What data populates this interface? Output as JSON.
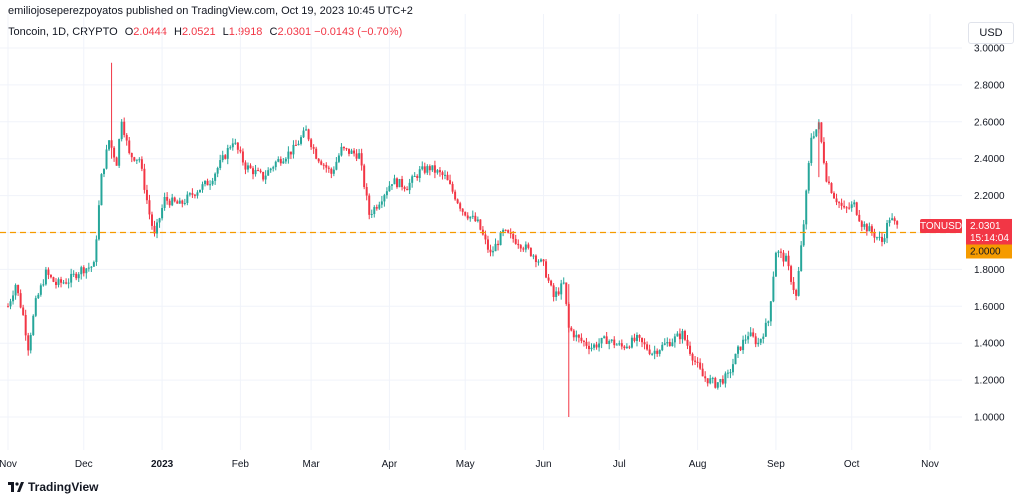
{
  "header": {
    "published_by": "emiliojoseperezpoyatos published on TradingView.com, Oct 19, 2023 10:45 UTC+2",
    "symbol": "Toncoin, 1D, CRYPTO",
    "open_label": "O",
    "open": "2.0444",
    "high_label": "H",
    "high": "2.0521",
    "low_label": "L",
    "low": "1.9918",
    "close_label": "C",
    "close": "2.0301",
    "change": "−0.0143 (−0.70%)"
  },
  "currency_button": "USD",
  "footer": {
    "brand": "TradingView"
  },
  "price_tag": {
    "symbol": "TONUSD",
    "price": "2.0301",
    "countdown": "15:14:04",
    "level": "2.0000"
  },
  "colors": {
    "up": "#26a69a",
    "down": "#f23645",
    "level_line": "#f59b00",
    "grid": "#f0f3fa"
  },
  "chart_data": {
    "type": "candlestick",
    "title": "Toncoin, 1D, CRYPTO",
    "ylim": [
      0.9,
      3.05
    ],
    "yticks": [
      "3.0000",
      "2.8000",
      "2.6000",
      "2.4000",
      "2.2000",
      "2.0000",
      "1.8000",
      "1.6000",
      "1.4000",
      "1.2000",
      "1.0000"
    ],
    "xticks": [
      {
        "label": "Nov",
        "date": "2022-11-01"
      },
      {
        "label": "Dec",
        "date": "2022-12-01"
      },
      {
        "label": "2023",
        "date": "2023-01-01",
        "bold": true
      },
      {
        "label": "Feb",
        "date": "2023-02-01"
      },
      {
        "label": "Mar",
        "date": "2023-03-01"
      },
      {
        "label": "Apr",
        "date": "2023-04-01"
      },
      {
        "label": "May",
        "date": "2023-05-01"
      },
      {
        "label": "Jun",
        "date": "2023-06-01"
      },
      {
        "label": "Jul",
        "date": "2023-07-01"
      },
      {
        "label": "Aug",
        "date": "2023-08-01"
      },
      {
        "label": "Sep",
        "date": "2023-09-01"
      },
      {
        "label": "Oct",
        "date": "2023-10-01"
      },
      {
        "label": "Nov",
        "date": "2023-11-01"
      }
    ],
    "horizontal_line": 2.0,
    "closes": [
      {
        "date": "2022-11-01",
        "close": 1.6
      },
      {
        "date": "2022-11-04",
        "close": 1.72
      },
      {
        "date": "2022-11-07",
        "close": 1.55
      },
      {
        "date": "2022-11-09",
        "close": 1.38
      },
      {
        "date": "2022-11-12",
        "close": 1.62
      },
      {
        "date": "2022-11-16",
        "close": 1.78
      },
      {
        "date": "2022-11-20",
        "close": 1.72
      },
      {
        "date": "2022-11-25",
        "close": 1.74
      },
      {
        "date": "2022-11-30",
        "close": 1.8
      },
      {
        "date": "2022-12-05",
        "close": 1.82
      },
      {
        "date": "2022-12-08",
        "close": 2.3
      },
      {
        "date": "2022-12-11",
        "close": 2.5
      },
      {
        "date": "2022-12-14",
        "close": 2.38
      },
      {
        "date": "2022-12-16",
        "close": 2.62
      },
      {
        "date": "2022-12-19",
        "close": 2.42
      },
      {
        "date": "2022-12-23",
        "close": 2.4
      },
      {
        "date": "2022-12-27",
        "close": 2.1
      },
      {
        "date": "2022-12-29",
        "close": 1.98
      },
      {
        "date": "2023-01-02",
        "close": 2.18
      },
      {
        "date": "2023-01-08",
        "close": 2.15
      },
      {
        "date": "2023-01-14",
        "close": 2.22
      },
      {
        "date": "2023-01-20",
        "close": 2.28
      },
      {
        "date": "2023-01-26",
        "close": 2.42
      },
      {
        "date": "2023-01-29",
        "close": 2.5
      },
      {
        "date": "2023-02-03",
        "close": 2.36
      },
      {
        "date": "2023-02-10",
        "close": 2.3
      },
      {
        "date": "2023-02-15",
        "close": 2.38
      },
      {
        "date": "2023-02-22",
        "close": 2.45
      },
      {
        "date": "2023-02-27",
        "close": 2.55
      },
      {
        "date": "2023-03-03",
        "close": 2.42
      },
      {
        "date": "2023-03-09",
        "close": 2.32
      },
      {
        "date": "2023-03-13",
        "close": 2.45
      },
      {
        "date": "2023-03-20",
        "close": 2.42
      },
      {
        "date": "2023-03-24",
        "close": 2.1
      },
      {
        "date": "2023-03-27",
        "close": 2.15
      },
      {
        "date": "2023-04-02",
        "close": 2.28
      },
      {
        "date": "2023-04-08",
        "close": 2.25
      },
      {
        "date": "2023-04-13",
        "close": 2.33
      },
      {
        "date": "2023-04-17",
        "close": 2.35
      },
      {
        "date": "2023-04-23",
        "close": 2.3
      },
      {
        "date": "2023-04-30",
        "close": 2.12
      },
      {
        "date": "2023-05-06",
        "close": 2.05
      },
      {
        "date": "2023-05-11",
        "close": 1.88
      },
      {
        "date": "2023-05-16",
        "close": 2.0
      },
      {
        "date": "2023-05-22",
        "close": 1.95
      },
      {
        "date": "2023-05-28",
        "close": 1.88
      },
      {
        "date": "2023-06-01",
        "close": 1.82
      },
      {
        "date": "2023-06-05",
        "close": 1.65
      },
      {
        "date": "2023-06-09",
        "close": 1.72
      },
      {
        "date": "2023-06-11",
        "close": 1.48
      },
      {
        "date": "2023-06-15",
        "close": 1.42
      },
      {
        "date": "2023-06-20",
        "close": 1.38
      },
      {
        "date": "2023-06-26",
        "close": 1.42
      },
      {
        "date": "2023-07-02",
        "close": 1.38
      },
      {
        "date": "2023-07-08",
        "close": 1.42
      },
      {
        "date": "2023-07-14",
        "close": 1.35
      },
      {
        "date": "2023-07-20",
        "close": 1.4
      },
      {
        "date": "2023-07-26",
        "close": 1.45
      },
      {
        "date": "2023-07-31",
        "close": 1.3
      },
      {
        "date": "2023-08-03",
        "close": 1.22
      },
      {
        "date": "2023-08-08",
        "close": 1.18
      },
      {
        "date": "2023-08-13",
        "close": 1.22
      },
      {
        "date": "2023-08-17",
        "close": 1.36
      },
      {
        "date": "2023-08-21",
        "close": 1.45
      },
      {
        "date": "2023-08-25",
        "close": 1.4
      },
      {
        "date": "2023-08-29",
        "close": 1.52
      },
      {
        "date": "2023-09-01",
        "close": 1.9
      },
      {
        "date": "2023-09-05",
        "close": 1.85
      },
      {
        "date": "2023-09-09",
        "close": 1.65
      },
      {
        "date": "2023-09-12",
        "close": 2.05
      },
      {
        "date": "2023-09-15",
        "close": 2.52
      },
      {
        "date": "2023-09-18",
        "close": 2.58
      },
      {
        "date": "2023-09-21",
        "close": 2.3
      },
      {
        "date": "2023-09-24",
        "close": 2.2
      },
      {
        "date": "2023-09-28",
        "close": 2.12
      },
      {
        "date": "2023-10-02",
        "close": 2.15
      },
      {
        "date": "2023-10-05",
        "close": 2.05
      },
      {
        "date": "2023-10-09",
        "close": 2.0
      },
      {
        "date": "2023-10-13",
        "close": 1.95
      },
      {
        "date": "2023-10-16",
        "close": 2.08
      },
      {
        "date": "2023-10-19",
        "close": 2.03
      }
    ]
  }
}
